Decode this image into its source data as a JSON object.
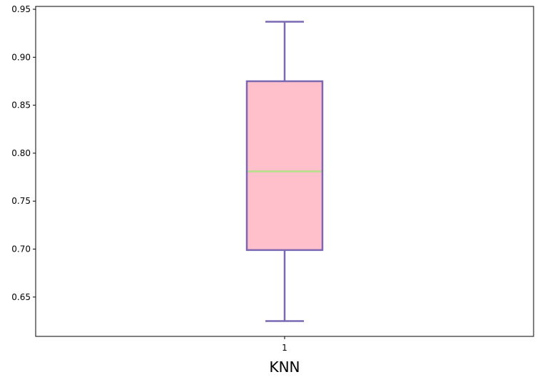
{
  "chart_data": {
    "type": "box",
    "xlabel": "KNN",
    "ylabel": "",
    "title": "",
    "categories": [
      "1"
    ],
    "boxes": [
      {
        "category": "1",
        "whisker_low": 0.625,
        "q1": 0.699,
        "median": 0.781,
        "q3": 0.875,
        "whisker_high": 0.937
      }
    ],
    "yticks": [
      "0.65",
      "0.70",
      "0.75",
      "0.80",
      "0.85",
      "0.90",
      "0.95"
    ],
    "ylim": [
      0.609,
      0.953
    ],
    "grid": false,
    "colors": {
      "box_fill": "#ffc0cb",
      "box_edge": "#7b68b3",
      "median": "#b2e08a",
      "axes": "#000000"
    }
  }
}
